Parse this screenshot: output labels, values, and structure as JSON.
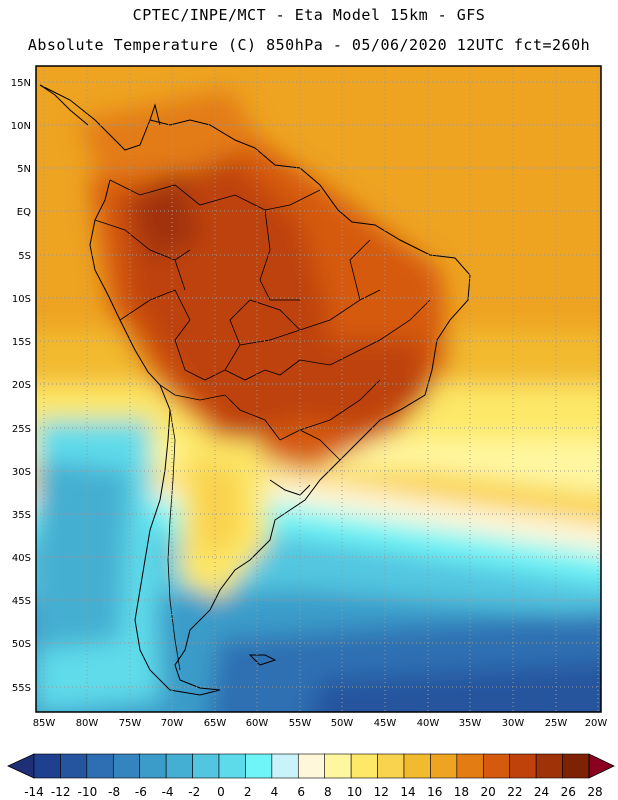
{
  "header": {
    "title_line1": "CPTEC/INPE/MCT -  Eta Model 15km - GFS",
    "title_line2": "Absolute Temperature (C) 850hPa - 05/06/2020 12UTC fct=260h"
  },
  "map": {
    "lat_labels": [
      "15N",
      "10N",
      "5N",
      "EQ",
      "5S",
      "10S",
      "15S",
      "20S",
      "25S",
      "30S",
      "35S",
      "40S",
      "45S",
      "50S",
      "55S"
    ],
    "lon_labels": [
      "85W",
      "80W",
      "75W",
      "70W",
      "65W",
      "60W",
      "55W",
      "50W",
      "45W",
      "40W",
      "35W",
      "30W",
      "25W",
      "20W"
    ]
  },
  "colorbar": {
    "labels": [
      "-14",
      "-12",
      "-10",
      "-8",
      "-6",
      "-4",
      "-2",
      "0",
      "2",
      "4",
      "6",
      "8",
      "10",
      "12",
      "14",
      "16",
      "18",
      "20",
      "22",
      "24",
      "26",
      "28"
    ],
    "colors": [
      "#1f3f8f",
      "#25559e",
      "#2d6fb2",
      "#3485bf",
      "#3b9bc9",
      "#44afd2",
      "#52c6e0",
      "#5edbea",
      "#6ff5f7",
      "#c9f3f9",
      "#fff7d9",
      "#fff7a0",
      "#fde868",
      "#f9d24e",
      "#f2ba2e",
      "#eea321",
      "#e37c12",
      "#d65a0d",
      "#be420a",
      "#a03208",
      "#7e2205",
      "#8a0020"
    ],
    "under_color": "#1e2f78",
    "over_color": "#8a0020"
  }
}
